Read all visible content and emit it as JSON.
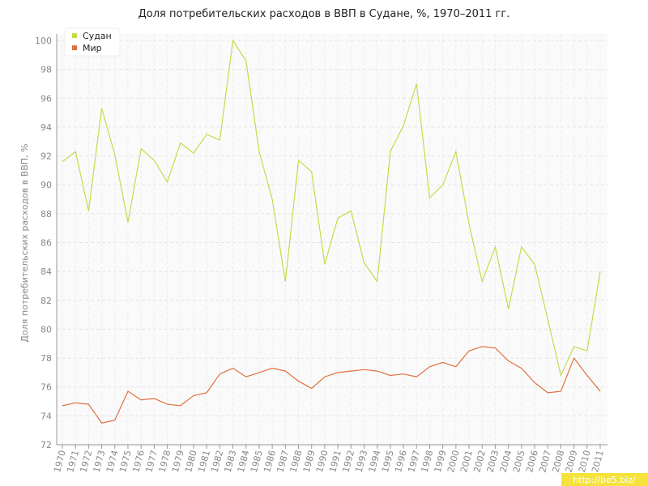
{
  "chart_data": {
    "type": "line",
    "title": "Доля потребительских расходов в ВВП в Судане, %, 1970–2011 гг.",
    "y_label": "Доля потребительских расходов в ВВП, %",
    "watermark": "http://be5.biz/",
    "x": [
      1970,
      1971,
      1972,
      1973,
      1974,
      1975,
      1976,
      1977,
      1978,
      1979,
      1980,
      1981,
      1982,
      1983,
      1984,
      1985,
      1986,
      1987,
      1988,
      1989,
      1990,
      1991,
      1992,
      1993,
      1994,
      1995,
      1996,
      1997,
      1998,
      1999,
      2000,
      2001,
      2002,
      2003,
      2004,
      2005,
      2006,
      2007,
      2008,
      2009,
      2010,
      2011
    ],
    "xlim": [
      1970,
      2011
    ],
    "ylim": [
      72,
      100
    ],
    "yticks": [
      72,
      74,
      76,
      78,
      80,
      82,
      84,
      86,
      88,
      90,
      92,
      94,
      96,
      98,
      100
    ],
    "grid": true,
    "legend": "top-left",
    "series": [
      {
        "name": "Судан",
        "color": "#c3dc4a",
        "values": [
          91.6,
          92.3,
          88.2,
          95.3,
          92.1,
          87.4,
          92.5,
          91.7,
          90.2,
          92.9,
          92.2,
          93.5,
          93.1,
          100.0,
          98.6,
          92.3,
          89.0,
          83.3,
          91.7,
          90.9,
          84.5,
          87.7,
          88.2,
          84.6,
          83.3,
          92.3,
          94.1,
          97.0,
          89.1,
          90.0,
          92.3,
          87.3,
          83.3,
          85.7,
          81.4,
          85.7,
          84.5,
          80.7,
          76.8,
          78.8,
          78.5,
          84.0
        ]
      },
      {
        "name": "Мир",
        "color": "#e0703f",
        "values": [
          74.7,
          74.9,
          74.8,
          73.5,
          73.7,
          75.7,
          75.1,
          75.2,
          74.8,
          74.7,
          75.4,
          75.6,
          76.9,
          77.3,
          76.7,
          77.0,
          77.3,
          77.1,
          76.4,
          75.9,
          76.7,
          77.0,
          77.1,
          77.2,
          77.1,
          76.8,
          76.9,
          76.7,
          77.4,
          77.7,
          77.4,
          78.5,
          78.8,
          78.7,
          77.8,
          77.3,
          76.3,
          75.6,
          75.7,
          78.0,
          76.8,
          75.7
        ]
      }
    ]
  }
}
